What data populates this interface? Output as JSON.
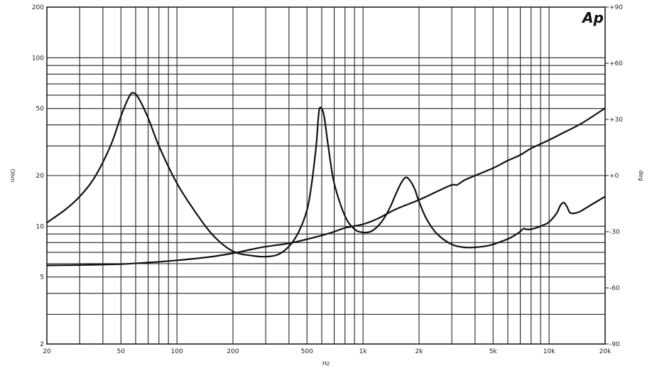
{
  "chart_data": {
    "type": "line",
    "logo": "Ap",
    "xlabel": "Hz",
    "ylabel_left": "Ohm",
    "ylabel_right": "deg",
    "x_scale": "log",
    "y_scale_left": "log",
    "xlim": [
      20,
      20000
    ],
    "ylim_left": [
      2,
      200
    ],
    "ylim_right": [
      -90,
      90
    ],
    "grid": true,
    "x_ticks": [
      {
        "value": 20,
        "label": "20"
      },
      {
        "value": 50,
        "label": "50"
      },
      {
        "value": 100,
        "label": "100"
      },
      {
        "value": 200,
        "label": "200"
      },
      {
        "value": 500,
        "label": "500"
      },
      {
        "value": 1000,
        "label": "1k"
      },
      {
        "value": 2000,
        "label": "2k"
      },
      {
        "value": 5000,
        "label": "5k"
      },
      {
        "value": 10000,
        "label": "10k"
      },
      {
        "value": 20000,
        "label": "20k"
      }
    ],
    "y_ticks_left": [
      {
        "value": 2,
        "label": "2"
      },
      {
        "value": 5,
        "label": "5"
      },
      {
        "value": 10,
        "label": "10"
      },
      {
        "value": 20,
        "label": "20"
      },
      {
        "value": 50,
        "label": "50"
      },
      {
        "value": 100,
        "label": "100"
      },
      {
        "value": 200,
        "label": "200"
      }
    ],
    "y_ticks_right": [
      {
        "value": 90,
        "label": "+90"
      },
      {
        "value": 60,
        "label": "+60"
      },
      {
        "value": 30,
        "label": "+30"
      },
      {
        "value": 0,
        "label": "+0"
      },
      {
        "value": -30,
        "label": "-30"
      },
      {
        "value": -60,
        "label": "-60"
      },
      {
        "value": -90,
        "label": "-90"
      }
    ],
    "series": [
      {
        "axis": "left",
        "x": [
          20,
          25,
          30,
          35,
          40,
          45,
          50,
          55,
          58,
          62,
          70,
          80,
          100,
          130,
          160,
          200,
          250,
          300,
          350,
          400,
          450,
          500,
          530,
          560,
          580,
          600,
          620,
          650,
          700,
          800,
          900,
          1000,
          1100,
          1200,
          1300,
          1400,
          1500,
          1600,
          1700,
          1800,
          1900,
          2000,
          2200,
          2500,
          3000,
          3500,
          4000,
          4500,
          5000,
          5500,
          6000,
          6500,
          7000,
          7300,
          7500,
          8000,
          9000,
          10000,
          11000,
          11500,
          12000,
          12500,
          13000,
          14000,
          15000,
          17000,
          20000
        ],
        "y": [
          10.5,
          12.5,
          15.0,
          18.5,
          24.0,
          32.0,
          45.0,
          58.0,
          62.0,
          58.0,
          44.0,
          30.0,
          18.0,
          11.5,
          8.6,
          7.1,
          6.7,
          6.6,
          6.8,
          7.6,
          9.2,
          12.5,
          18.0,
          30.0,
          48.0,
          50.0,
          44.0,
          30.0,
          18.0,
          11.5,
          9.6,
          9.2,
          9.3,
          10.0,
          11.2,
          13.0,
          15.5,
          18.0,
          19.5,
          18.5,
          16.5,
          14.0,
          11.0,
          9.0,
          7.8,
          7.5,
          7.5,
          7.6,
          7.8,
          8.1,
          8.4,
          8.8,
          9.3,
          9.7,
          9.6,
          9.6,
          10.0,
          10.6,
          12.0,
          13.3,
          13.8,
          13.0,
          12.0,
          12.0,
          12.4,
          13.5,
          15.0
        ]
      },
      {
        "axis": "right",
        "x": [
          20,
          30,
          50,
          70,
          100,
          150,
          200,
          250,
          300,
          400,
          500,
          600,
          700,
          800,
          1000,
          1200,
          1500,
          2000,
          2500,
          3000,
          3200,
          3500,
          4000,
          5000,
          6000,
          7000,
          8000,
          10000,
          12000,
          15000,
          20000
        ],
        "y": [
          -48.0,
          -47.8,
          -47.3,
          -46.5,
          -45.3,
          -43.5,
          -41.5,
          -39.5,
          -38.0,
          -36.2,
          -34.0,
          -32.0,
          -30.0,
          -28.0,
          -26.0,
          -23.0,
          -18.0,
          -13.0,
          -8.5,
          -5.0,
          -5.0,
          -2.5,
          0.0,
          4.0,
          8.0,
          11.0,
          14.5,
          19.0,
          23.0,
          28.0,
          36.0
        ]
      }
    ]
  }
}
